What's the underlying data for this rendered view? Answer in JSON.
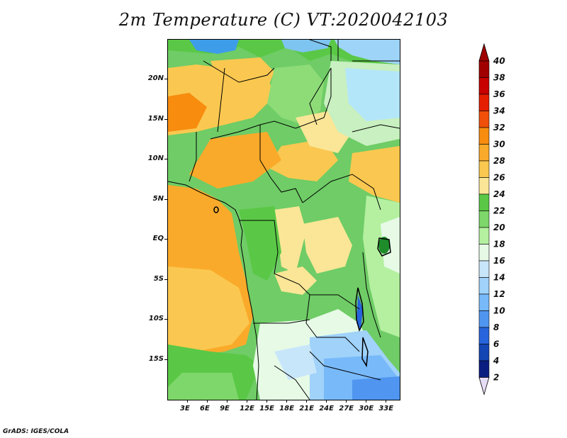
{
  "title": "2m Temperature (C) VT:2020042103",
  "credit": "GrADS: IGES/COLA",
  "map": {
    "lon_range": [
      0,
      35
    ],
    "lat_range": [
      -20,
      25
    ],
    "lat_ticks": [
      {
        "value": 20,
        "label": "20N"
      },
      {
        "value": 15,
        "label": "15N"
      },
      {
        "value": 10,
        "label": "10N"
      },
      {
        "value": 5,
        "label": "5N"
      },
      {
        "value": 0,
        "label": "EQ"
      },
      {
        "value": -5,
        "label": "5S"
      },
      {
        "value": -10,
        "label": "10S"
      },
      {
        "value": -15,
        "label": "15S"
      }
    ],
    "lon_ticks": [
      {
        "value": 3,
        "label": "3E"
      },
      {
        "value": 6,
        "label": "6E"
      },
      {
        "value": 9,
        "label": "9E"
      },
      {
        "value": 12,
        "label": "12E"
      },
      {
        "value": 15,
        "label": "15E"
      },
      {
        "value": 18,
        "label": "18E"
      },
      {
        "value": 21,
        "label": "21E"
      },
      {
        "value": 24,
        "label": "24E"
      },
      {
        "value": 27,
        "label": "27E"
      },
      {
        "value": 30,
        "label": "30E"
      },
      {
        "value": 33,
        "label": "33E"
      }
    ]
  },
  "colorbar": {
    "levels": [
      "40",
      "38",
      "36",
      "34",
      "32",
      "30",
      "28",
      "26",
      "24",
      "22",
      "20",
      "18",
      "16",
      "14",
      "12",
      "10",
      "8",
      "6",
      "4",
      "2"
    ],
    "bins_top_to_bottom": [
      "#a00000",
      "#c80000",
      "#e61e00",
      "#f0500a",
      "#f78c0f",
      "#faaa2a",
      "#fac850",
      "#fae696",
      "#5ac846",
      "#7ed76a",
      "#b4f0a0",
      "#e6fae6",
      "#c8e6fa",
      "#a0d2fa",
      "#78b9fa",
      "#5096f0",
      "#2864dc",
      "#1446b4",
      "#0a1e82"
    ],
    "top_arrow_color": "#a00000",
    "bottom_arrow_color": "#e6dcf5"
  }
}
